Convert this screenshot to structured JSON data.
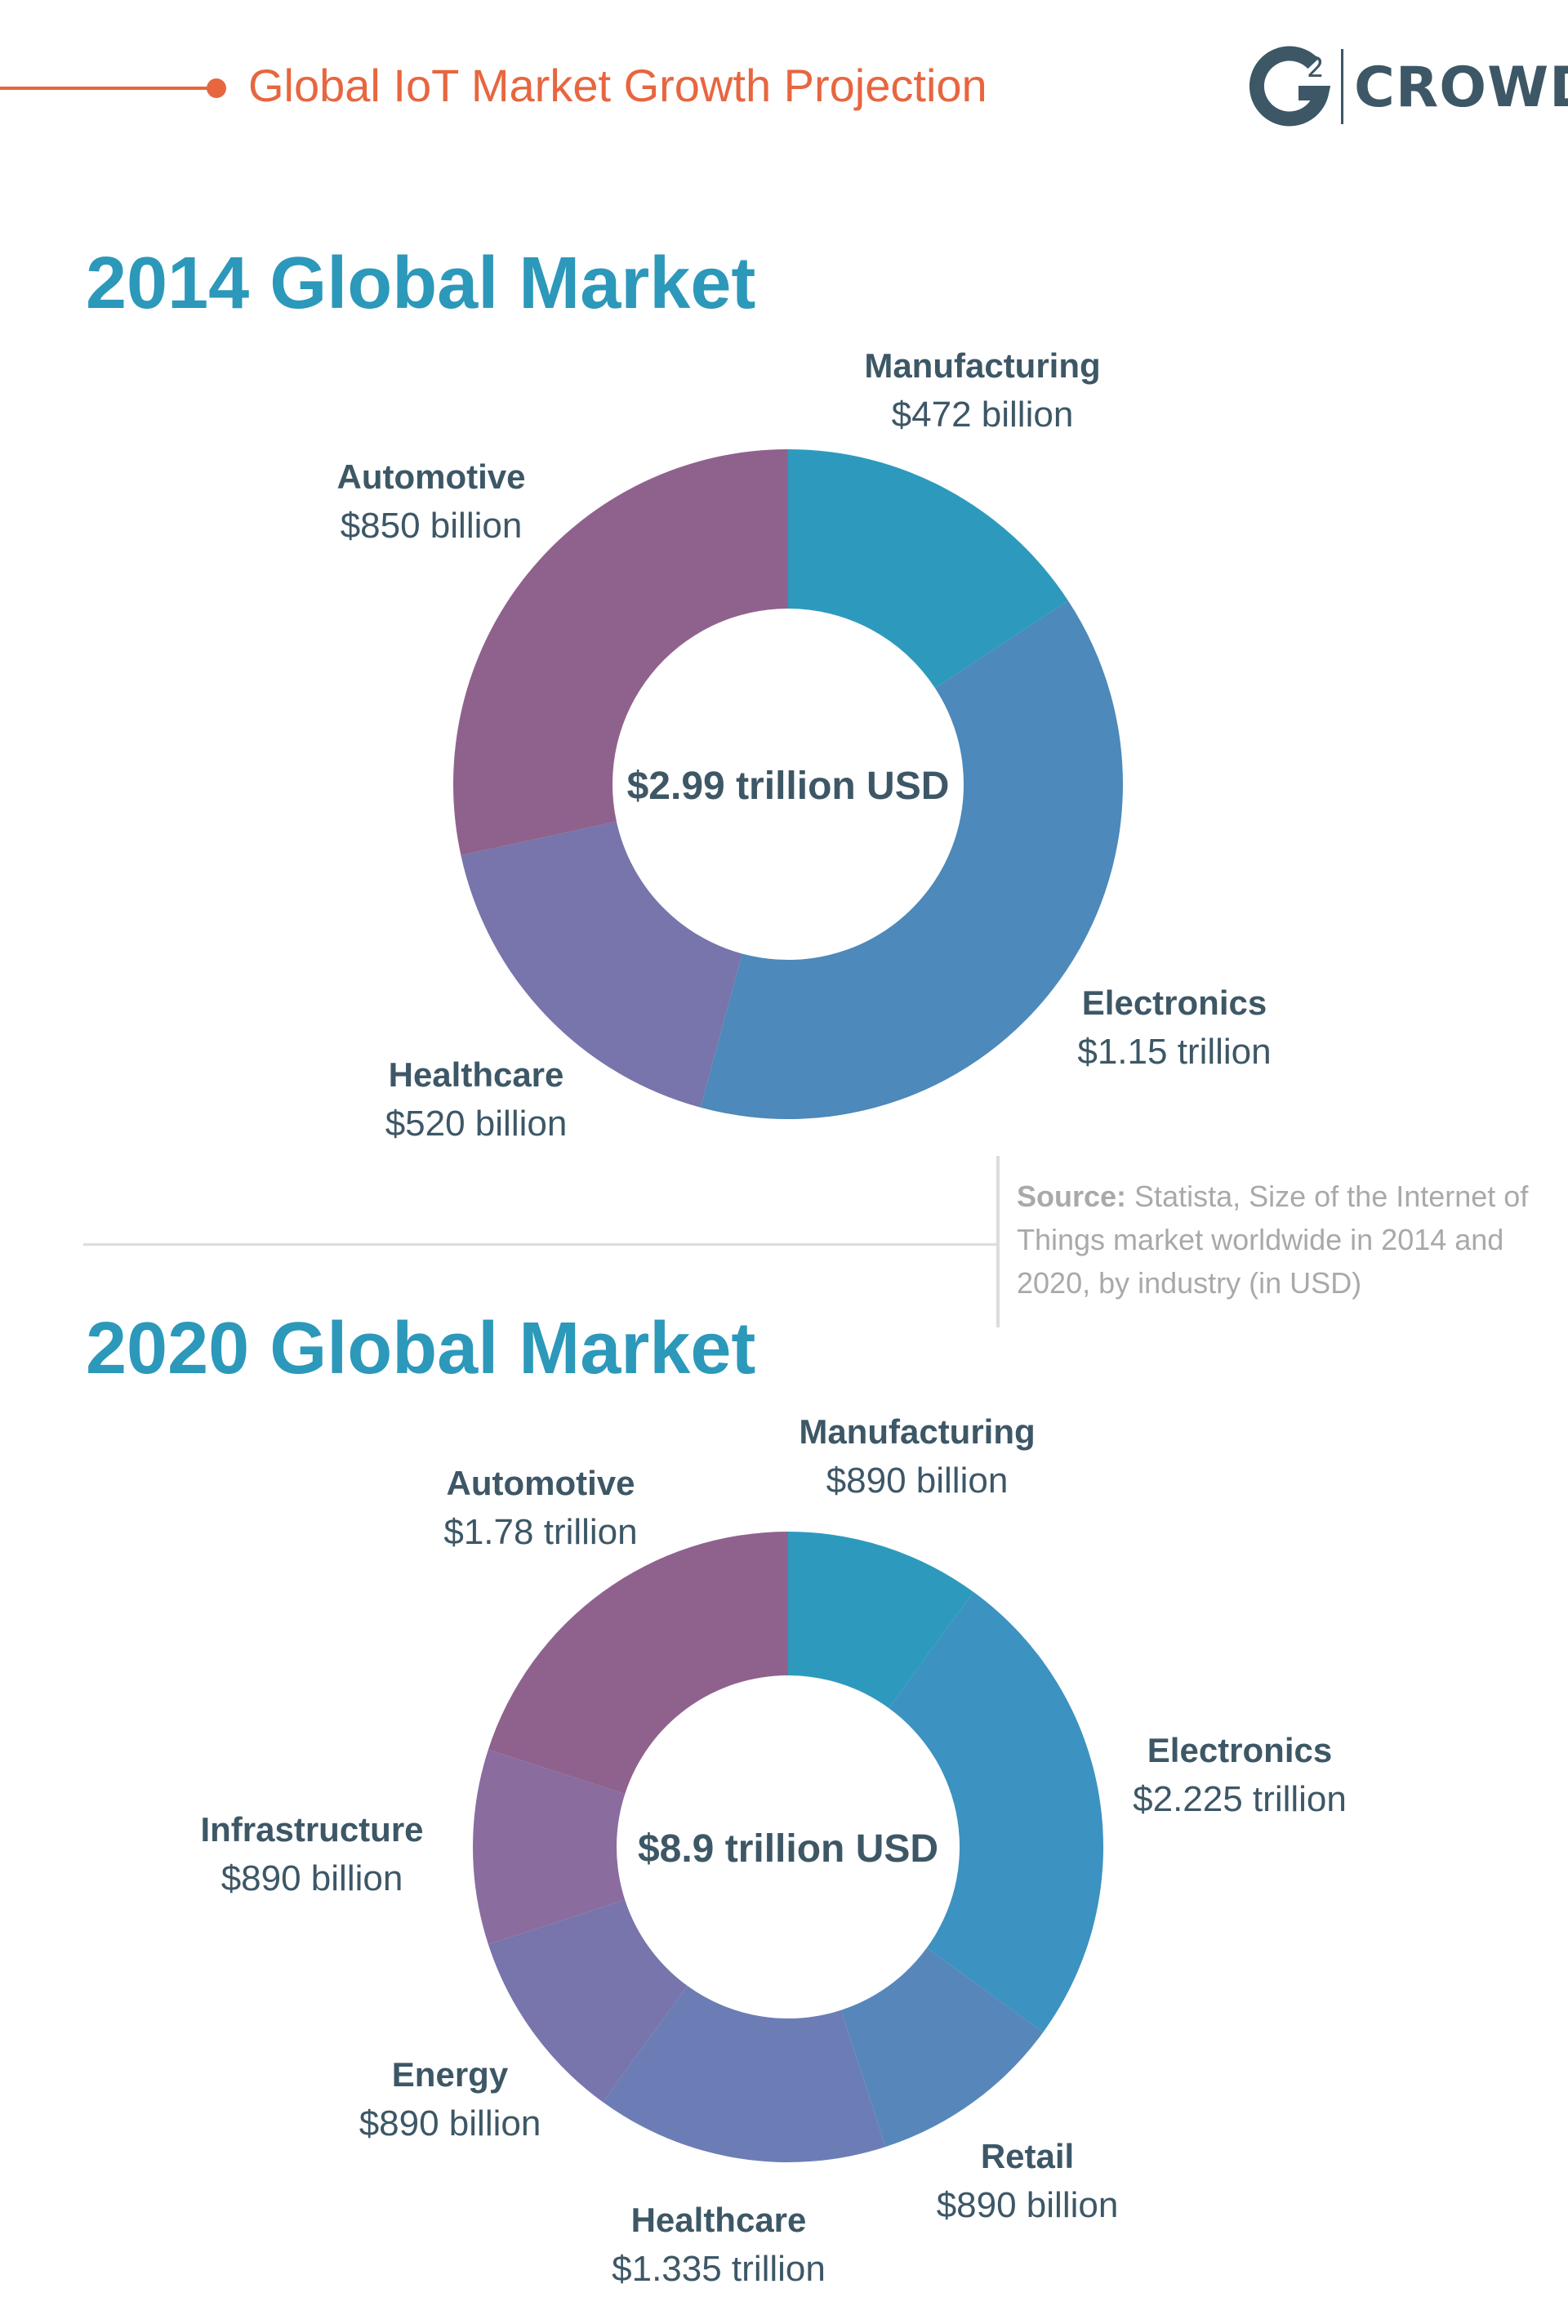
{
  "colors": {
    "accent_orange": "#E7663F",
    "heading_blue": "#2C98BA",
    "dark_slate": "#3D5766",
    "source_gray": "#A9A9A9",
    "rule_gray": "#DCDCDC",
    "slices": {
      "manufacturing": "#2D9ABD",
      "electronics": "#4D89BA",
      "electronics_2020": "#3C92C0",
      "retail": "#5787BA",
      "healthcare": "#6C7DB5",
      "healthcare_2014": "#7775AB",
      "energy": "#7874AC",
      "infrastructure": "#8A6C9F",
      "automotive": "#8F628E"
    }
  },
  "header": {
    "title": "Global IoT Market Growth Projection"
  },
  "logo": {
    "icon": "g2-logo-icon",
    "brand": "CROWD",
    "superscript": "2"
  },
  "chart_data": [
    {
      "type": "pie",
      "title": "2014 Global Market",
      "center_label": "$2.99 trillion USD",
      "unit": "billion USD",
      "slices": [
        {
          "name": "Manufacturing",
          "value": 472,
          "label": "$472 billion",
          "color": "#2D9ABD"
        },
        {
          "name": "Electronics",
          "value": 1150,
          "label": "$1.15 trillion",
          "color": "#4D89BA"
        },
        {
          "name": "Healthcare",
          "value": 520,
          "label": "$520 billion",
          "color": "#7775AB"
        },
        {
          "name": "Automotive",
          "value": 850,
          "label": "$850 billion",
          "color": "#8F628E"
        }
      ]
    },
    {
      "type": "pie",
      "title": "2020 Global Market",
      "center_label": "$8.9 trillion USD",
      "unit": "billion USD",
      "slices": [
        {
          "name": "Manufacturing",
          "value": 890,
          "label": "$890 billion",
          "color": "#2D9ABD"
        },
        {
          "name": "Electronics",
          "value": 2225,
          "label": "$2.225 trillion",
          "color": "#3C92C0"
        },
        {
          "name": "Retail",
          "value": 890,
          "label": "$890 billion",
          "color": "#5787BA"
        },
        {
          "name": "Healthcare",
          "value": 1335,
          "label": "$1.335 trillion",
          "color": "#6C7DB5"
        },
        {
          "name": "Energy",
          "value": 890,
          "label": "$890 billion",
          "color": "#7874AC"
        },
        {
          "name": "Infrastructure",
          "value": 890,
          "label": "$890 billion",
          "color": "#8A6C9F"
        },
        {
          "name": "Automotive",
          "value": 1780,
          "label": "$1.78 trillion",
          "color": "#8F628E"
        }
      ]
    }
  ],
  "source": {
    "prefix": "Source:",
    "text": " Statista, Size of the Internet of Things market worldwide in 2014 and 2020, by industry (in USD)"
  }
}
